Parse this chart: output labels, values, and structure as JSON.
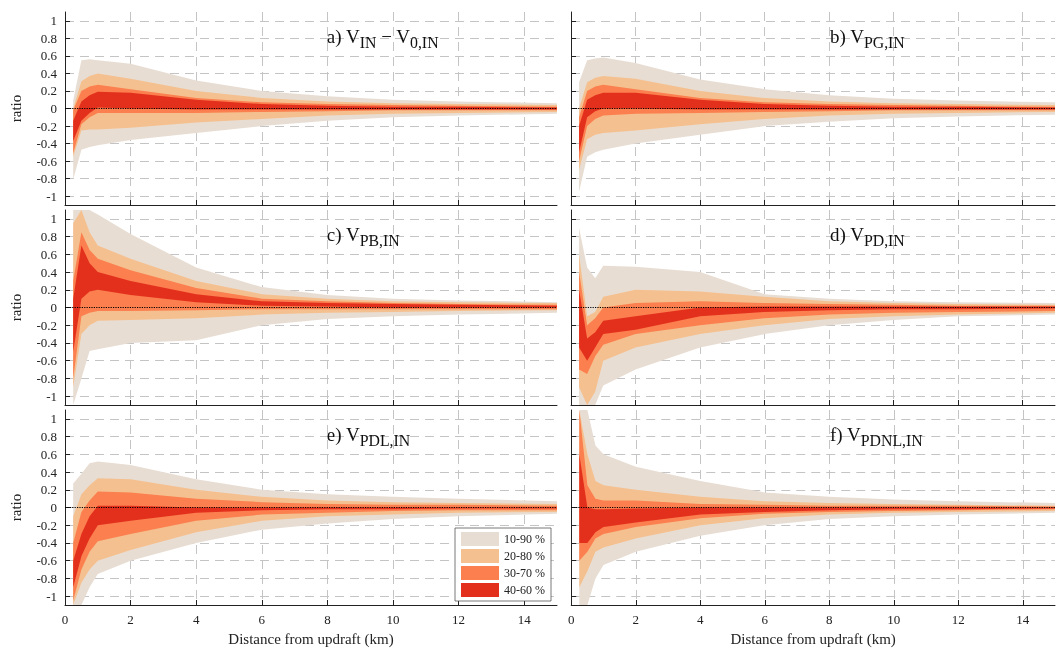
{
  "chart_data": [
    {
      "type": "area",
      "title": "a) V$_{IN}$ − V$_{0,IN}$",
      "ylabel": "ratio",
      "tick_labels": "y",
      "x": [
        0.25,
        0.5,
        0.75,
        1,
        2,
        4,
        6,
        8,
        10,
        12,
        15
      ],
      "xlim": [
        0,
        15
      ],
      "xticks": [
        0,
        2,
        4,
        6,
        8,
        10,
        12,
        14
      ],
      "ylim": [
        -1.1,
        1.1
      ],
      "yticks": [
        -1,
        -0.8,
        -0.6,
        -0.4,
        -0.2,
        0,
        0.2,
        0.4,
        0.6,
        0.8,
        1
      ],
      "grid": true,
      "ref_lines": [
        {
          "axis": "y",
          "value": 0,
          "line_style": "dotted"
        }
      ],
      "series": [
        {
          "color": "#e8ddd3",
          "values": [
            null,
            null,
            null,
            null,
            null,
            null,
            null,
            null,
            null,
            null,
            null
          ],
          "upper": [
            0.09,
            0.55,
            0.56,
            0.55,
            0.51,
            0.32,
            0.2,
            0.14,
            0.1,
            0.08,
            0.06
          ],
          "lower": [
            -0.81,
            -0.47,
            -0.44,
            -0.42,
            -0.36,
            -0.28,
            -0.2,
            -0.14,
            -0.1,
            -0.08,
            -0.06
          ]
        },
        {
          "color": "#f5c08f",
          "values": [
            null,
            null,
            null,
            null,
            null,
            null,
            null,
            null,
            null,
            null,
            null
          ],
          "upper": [
            0,
            0.31,
            0.37,
            0.4,
            0.34,
            0.2,
            0.12,
            0.08,
            0.06,
            0.05,
            0.04
          ],
          "lower": [
            -0.55,
            -0.25,
            -0.24,
            -0.24,
            -0.22,
            -0.16,
            -0.12,
            -0.08,
            -0.06,
            -0.05,
            -0.04
          ]
        },
        {
          "color": "#fb7f4f",
          "values": [
            null,
            null,
            null,
            null,
            null,
            null,
            null,
            null,
            null,
            null,
            null
          ],
          "upper": [
            -0.02,
            0.2,
            0.25,
            0.27,
            0.22,
            0.12,
            0.07,
            0.05,
            0.04,
            0.03,
            0.02
          ],
          "lower": [
            -0.51,
            -0.18,
            -0.1,
            -0.05,
            -0.05,
            -0.05,
            -0.04,
            -0.03,
            -0.02,
            -0.02,
            -0.02
          ]
        },
        {
          "color": "#e3301c",
          "values": [
            null,
            null,
            null,
            null,
            null,
            null,
            null,
            null,
            null,
            null,
            null
          ],
          "upper": [
            -0.14,
            0.08,
            0.15,
            0.19,
            0.18,
            0.1,
            0.05,
            0.03,
            0.02,
            0.02,
            0.01
          ],
          "lower": [
            -0.37,
            -0.14,
            -0.05,
            0.01,
            0,
            -0.01,
            -0.01,
            -0.01,
            -0.01,
            -0.01,
            -0.01
          ]
        }
      ]
    },
    {
      "type": "area",
      "title": "b) V$_{PG,IN}$",
      "tick_labels": false,
      "x": [
        0.25,
        0.5,
        0.75,
        1,
        2,
        4,
        6,
        8,
        10,
        12,
        15
      ],
      "xlim": [
        0,
        15
      ],
      "xticks": [
        0,
        2,
        4,
        6,
        8,
        10,
        12,
        14
      ],
      "ylim": [
        -1.1,
        1.1
      ],
      "yticks": [
        -1,
        -0.8,
        -0.6,
        -0.4,
        -0.2,
        0,
        0.2,
        0.4,
        0.6,
        0.8,
        1
      ],
      "grid": true,
      "ref_lines": [
        {
          "axis": "y",
          "value": 0,
          "line_style": "dotted"
        }
      ],
      "series": [
        {
          "color": "#e8ddd3",
          "values": [
            null,
            null,
            null,
            null,
            null,
            null,
            null,
            null,
            null,
            null,
            null
          ],
          "upper": [
            0.3,
            0.55,
            0.57,
            0.58,
            0.52,
            0.33,
            0.22,
            0.15,
            0.11,
            0.09,
            0.07
          ],
          "lower": [
            -0.95,
            -0.55,
            -0.5,
            -0.47,
            -0.4,
            -0.3,
            -0.2,
            -0.15,
            -0.11,
            -0.09,
            -0.07
          ]
        },
        {
          "color": "#f5c08f",
          "values": [
            null,
            null,
            null,
            null,
            null,
            null,
            null,
            null,
            null,
            null,
            null
          ],
          "upper": [
            0,
            0.3,
            0.35,
            0.37,
            0.34,
            0.2,
            0.12,
            0.08,
            0.06,
            0.05,
            0.04
          ],
          "lower": [
            -0.7,
            -0.35,
            -0.3,
            -0.28,
            -0.25,
            -0.18,
            -0.12,
            -0.08,
            -0.06,
            -0.05,
            -0.04
          ]
        },
        {
          "color": "#fb7f4f",
          "values": [
            null,
            null,
            null,
            null,
            null,
            null,
            null,
            null,
            null,
            null,
            null
          ],
          "upper": [
            -0.1,
            0.2,
            0.25,
            0.27,
            0.22,
            0.12,
            0.07,
            0.05,
            0.04,
            0.03,
            0.02
          ],
          "lower": [
            -0.6,
            -0.2,
            -0.12,
            -0.08,
            -0.06,
            -0.05,
            -0.04,
            -0.03,
            -0.02,
            -0.02,
            -0.02
          ]
        },
        {
          "color": "#e3301c",
          "values": [
            null,
            null,
            null,
            null,
            null,
            null,
            null,
            null,
            null,
            null,
            null
          ],
          "upper": [
            -0.2,
            0.1,
            0.15,
            0.18,
            0.18,
            0.1,
            0.05,
            0.03,
            0.02,
            0.02,
            0.01
          ],
          "lower": [
            -0.5,
            -0.1,
            -0.03,
            0,
            0,
            -0.01,
            -0.01,
            -0.01,
            -0.01,
            -0.01,
            -0.01
          ]
        }
      ]
    },
    {
      "type": "area",
      "title": "c) V$_{PB,IN}$",
      "ylabel": "ratio",
      "tick_labels": "y",
      "x": [
        0.25,
        0.5,
        0.75,
        1,
        2,
        4,
        6,
        8,
        10,
        12,
        15
      ],
      "xlim": [
        0,
        15
      ],
      "xticks": [
        0,
        2,
        4,
        6,
        8,
        10,
        12,
        14
      ],
      "ylim": [
        -1.1,
        1.1
      ],
      "yticks": [
        -1,
        -0.8,
        -0.6,
        -0.4,
        -0.2,
        0,
        0.2,
        0.4,
        0.6,
        0.8,
        1
      ],
      "grid": true,
      "ref_lines": [
        {
          "axis": "y",
          "value": 0,
          "line_style": "dotted"
        }
      ],
      "series": [
        {
          "color": "#e8ddd3",
          "values": [
            null,
            null,
            null,
            null,
            null,
            null,
            null,
            null,
            null,
            null,
            null
          ],
          "upper": [
            1.1,
            1.1,
            1.1,
            1.05,
            0.83,
            0.45,
            0.23,
            0.14,
            0.1,
            0.08,
            0.06
          ],
          "lower": [
            -1.1,
            -0.8,
            -0.49,
            -0.47,
            -0.4,
            -0.37,
            -0.2,
            -0.13,
            -0.1,
            -0.08,
            -0.06
          ]
        },
        {
          "color": "#f5c08f",
          "values": [
            null,
            null,
            null,
            null,
            null,
            null,
            null,
            null,
            null,
            null,
            null
          ],
          "upper": [
            0.95,
            1.1,
            0.85,
            0.7,
            0.55,
            0.3,
            0.15,
            0.1,
            0.07,
            0.06,
            0.05
          ],
          "lower": [
            -0.9,
            -0.3,
            -0.2,
            -0.15,
            -0.14,
            -0.12,
            -0.08,
            -0.06,
            -0.05,
            -0.04,
            -0.03
          ]
        },
        {
          "color": "#fb7f4f",
          "values": [
            null,
            null,
            null,
            null,
            null,
            null,
            null,
            null,
            null,
            null,
            null
          ],
          "upper": [
            0.3,
            0.85,
            0.65,
            0.55,
            0.42,
            0.22,
            0.1,
            0.07,
            0.05,
            0.04,
            0.03
          ],
          "lower": [
            -0.8,
            -0.1,
            -0.06,
            -0.04,
            -0.04,
            -0.03,
            -0.02,
            -0.02,
            -0.02,
            -0.02,
            -0.02
          ]
        },
        {
          "color": "#e3301c",
          "values": [
            null,
            null,
            null,
            null,
            null,
            null,
            null,
            null,
            null,
            null,
            null
          ],
          "upper": [
            0.1,
            0.7,
            0.5,
            0.4,
            0.3,
            0.15,
            0.07,
            0.05,
            0.04,
            0.03,
            0.02
          ],
          "lower": [
            -0.5,
            0.1,
            0.18,
            0.2,
            0.14,
            0.06,
            0.02,
            0.01,
            0,
            0,
            0
          ]
        }
      ]
    },
    {
      "type": "area",
      "title": "d) V$_{PD,IN}$",
      "tick_labels": false,
      "x": [
        0.25,
        0.5,
        0.75,
        1,
        2,
        4,
        6,
        8,
        10,
        12,
        15
      ],
      "xlim": [
        0,
        15
      ],
      "xticks": [
        0,
        2,
        4,
        6,
        8,
        10,
        12,
        14
      ],
      "ylim": [
        -1.1,
        1.1
      ],
      "yticks": [
        -1,
        -0.8,
        -0.6,
        -0.4,
        -0.2,
        0,
        0.2,
        0.4,
        0.6,
        0.8,
        1
      ],
      "grid": true,
      "ref_lines": [
        {
          "axis": "y",
          "value": 0,
          "line_style": "dotted"
        }
      ],
      "series": [
        {
          "color": "#e8ddd3",
          "values": [
            null,
            null,
            null,
            null,
            null,
            null,
            null,
            null,
            null,
            null,
            null
          ],
          "upper": [
            0.9,
            0.45,
            0.33,
            0.47,
            0.46,
            0.4,
            0.15,
            0.1,
            0.07,
            0.06,
            0.05
          ],
          "lower": [
            -1.1,
            -1.1,
            -1.1,
            -0.88,
            -0.7,
            -0.45,
            -0.3,
            -0.2,
            -0.14,
            -0.1,
            -0.08
          ]
        },
        {
          "color": "#f5c08f",
          "values": [
            null,
            null,
            null,
            null,
            null,
            null,
            null,
            null,
            null,
            null,
            null
          ],
          "upper": [
            0.6,
            -0.1,
            -0.05,
            0.12,
            0.2,
            0.18,
            0.12,
            0.07,
            0.05,
            0.04,
            0.03
          ],
          "lower": [
            -0.9,
            -1.1,
            -0.95,
            -0.6,
            -0.45,
            -0.3,
            -0.2,
            -0.13,
            -0.1,
            -0.08,
            -0.06
          ]
        },
        {
          "color": "#fb7f4f",
          "values": [
            null,
            null,
            null,
            null,
            null,
            null,
            null,
            null,
            null,
            null,
            null
          ],
          "upper": [
            0.4,
            -0.2,
            -0.12,
            0,
            0.05,
            0.07,
            0.05,
            0.04,
            0.03,
            0.02,
            0.02
          ],
          "lower": [
            -0.7,
            -0.75,
            -0.55,
            -0.42,
            -0.3,
            -0.2,
            -0.12,
            -0.08,
            -0.06,
            -0.05,
            -0.04
          ]
        },
        {
          "color": "#e3301c",
          "values": [
            null,
            null,
            null,
            null,
            null,
            null,
            null,
            null,
            null,
            null,
            null
          ],
          "upper": [
            0.2,
            -0.35,
            -0.28,
            -0.15,
            -0.1,
            0,
            0.01,
            0.01,
            0.01,
            0.01,
            0.01
          ],
          "lower": [
            -0.45,
            -0.6,
            -0.45,
            -0.3,
            -0.25,
            -0.1,
            -0.05,
            -0.03,
            -0.02,
            -0.02,
            -0.01
          ]
        }
      ]
    },
    {
      "type": "area",
      "title": "e) V$_{PDL,IN}$",
      "ylabel": "ratio",
      "xlabel": "Distance from updraft (km)",
      "legend": "bottom right",
      "x": [
        0.25,
        0.5,
        0.75,
        1,
        2,
        4,
        6,
        8,
        10,
        12,
        15
      ],
      "xlim": [
        0,
        15
      ],
      "xticks": [
        0,
        2,
        4,
        6,
        8,
        10,
        12,
        14
      ],
      "ylim": [
        -1.1,
        1.1
      ],
      "yticks": [
        -1,
        -0.8,
        -0.6,
        -0.4,
        -0.2,
        0,
        0.2,
        0.4,
        0.6,
        0.8,
        1
      ],
      "grid": true,
      "ref_lines": [
        {
          "axis": "y",
          "value": 0,
          "line_style": "dotted"
        }
      ],
      "series": [
        {
          "name": "10-90 %",
          "color": "#e8ddd3",
          "values": [
            null,
            null,
            null,
            null,
            null,
            null,
            null,
            null,
            null,
            null,
            null
          ],
          "upper": [
            0.27,
            0.38,
            0.5,
            0.52,
            0.48,
            0.32,
            0.2,
            0.15,
            0.12,
            0.1,
            0.07
          ],
          "lower": [
            -1.1,
            -1.1,
            -0.9,
            -0.75,
            -0.6,
            -0.4,
            -0.25,
            -0.18,
            -0.13,
            -0.1,
            -0.07
          ]
        },
        {
          "name": "20-80 %",
          "color": "#f5c08f",
          "values": [
            null,
            null,
            null,
            null,
            null,
            null,
            null,
            null,
            null,
            null,
            null
          ],
          "upper": [
            -0.1,
            0.15,
            0.25,
            0.33,
            0.32,
            0.2,
            0.12,
            0.08,
            0.06,
            0.05,
            0.04
          ],
          "lower": [
            -1.1,
            -0.85,
            -0.7,
            -0.6,
            -0.48,
            -0.28,
            -0.15,
            -0.1,
            -0.08,
            -0.06,
            -0.05
          ]
        },
        {
          "name": "30-70 %",
          "color": "#fb7f4f",
          "values": [
            null,
            null,
            null,
            null,
            null,
            null,
            null,
            null,
            null,
            null,
            null
          ],
          "upper": [
            -0.4,
            -0.05,
            0.08,
            0.18,
            0.17,
            0.1,
            0.06,
            0.04,
            0.03,
            0.03,
            0.02
          ],
          "lower": [
            -1.05,
            -0.7,
            -0.5,
            -0.38,
            -0.3,
            -0.15,
            -0.08,
            -0.06,
            -0.04,
            -0.03,
            -0.03
          ]
        },
        {
          "name": "40-60 %",
          "color": "#e3301c",
          "values": [
            null,
            null,
            null,
            null,
            null,
            null,
            null,
            null,
            null,
            null,
            null
          ],
          "upper": [
            -0.6,
            -0.3,
            -0.1,
            0.02,
            0.02,
            0,
            0,
            0,
            0,
            0,
            0
          ],
          "lower": [
            -0.9,
            -0.55,
            -0.35,
            -0.2,
            -0.15,
            -0.06,
            -0.03,
            -0.02,
            -0.02,
            -0.01,
            -0.01
          ]
        }
      ]
    },
    {
      "type": "area",
      "title": "f) V$_{PDNL,IN}$",
      "xlabel": "Distance from updraft (km)",
      "tick_labels": "x",
      "x": [
        0.25,
        0.5,
        0.75,
        1,
        2,
        4,
        6,
        8,
        10,
        12,
        15
      ],
      "xlim": [
        0,
        15
      ],
      "xticks": [
        0,
        2,
        4,
        6,
        8,
        10,
        12,
        14
      ],
      "ylim": [
        -1.1,
        1.1
      ],
      "yticks": [
        -1,
        -0.8,
        -0.6,
        -0.4,
        -0.2,
        0,
        0.2,
        0.4,
        0.6,
        0.8,
        1
      ],
      "grid": true,
      "ref_lines": [
        {
          "axis": "y",
          "value": 0,
          "line_style": "dotted"
        }
      ],
      "series": [
        {
          "color": "#e8ddd3",
          "values": [
            null,
            null,
            null,
            null,
            null,
            null,
            null,
            null,
            null,
            null,
            null
          ],
          "upper": [
            1.1,
            1.1,
            0.7,
            0.6,
            0.46,
            0.3,
            0.17,
            0.12,
            0.09,
            0.07,
            0.05
          ],
          "lower": [
            -1.1,
            -1.1,
            -0.8,
            -0.65,
            -0.5,
            -0.32,
            -0.2,
            -0.13,
            -0.1,
            -0.08,
            -0.06
          ]
        },
        {
          "color": "#f5c08f",
          "values": [
            null,
            null,
            null,
            null,
            null,
            null,
            null,
            null,
            null,
            null,
            null
          ],
          "upper": [
            1.1,
            0.6,
            0.3,
            0.25,
            0.2,
            0.12,
            0.07,
            0.05,
            0.04,
            0.03,
            0.02
          ],
          "lower": [
            -0.9,
            -0.72,
            -0.5,
            -0.45,
            -0.35,
            -0.2,
            -0.12,
            -0.08,
            -0.06,
            -0.05,
            -0.04
          ]
        },
        {
          "color": "#fb7f4f",
          "values": [
            null,
            null,
            null,
            null,
            null,
            null,
            null,
            null,
            null,
            null,
            null
          ],
          "upper": [
            1.1,
            0.25,
            0.1,
            0.08,
            0.08,
            0.04,
            0.03,
            0.02,
            0.02,
            0.02,
            0.01
          ],
          "lower": [
            -0.6,
            -0.5,
            -0.35,
            -0.3,
            -0.22,
            -0.12,
            -0.07,
            -0.05,
            -0.04,
            -0.03,
            -0.02
          ]
        },
        {
          "color": "#e3301c",
          "values": [
            null,
            null,
            null,
            null,
            null,
            null,
            null,
            null,
            null,
            null,
            null
          ],
          "upper": [
            0.6,
            0,
            -0.02,
            -0.02,
            -0.01,
            0,
            0,
            0,
            0,
            0,
            0
          ],
          "lower": [
            -0.4,
            -0.4,
            -0.28,
            -0.22,
            -0.17,
            -0.08,
            -0.05,
            -0.03,
            -0.02,
            -0.02,
            -0.01
          ]
        }
      ]
    }
  ]
}
